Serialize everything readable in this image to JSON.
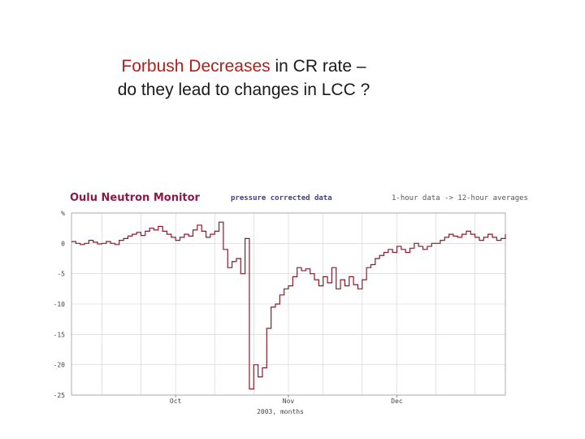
{
  "slide": {
    "title_highlight": "Forbush Decreases",
    "title_rest": " in CR rate –",
    "title_line2": "do they lead to changes in LCC ?"
  },
  "chart_header": {
    "station": "Oulu Neutron Monitor",
    "data_note": "pressure corrected data",
    "averaging": "1-hour data -> 12-hour averages"
  },
  "chart_data": {
    "type": "line",
    "title": "Oulu Neutron Monitor",
    "xlabel": "2003, months",
    "ylabel": "%",
    "ylim": [
      -25,
      5
    ],
    "xlim": [
      0,
      100
    ],
    "y_ticks": [
      {
        "value": 5,
        "label": "%"
      },
      {
        "value": 0,
        "label": "0"
      },
      {
        "value": -5,
        "label": "-5"
      },
      {
        "value": -10,
        "label": "-10"
      },
      {
        "value": -15,
        "label": "-15"
      },
      {
        "value": -20,
        "label": "-20"
      },
      {
        "value": -25,
        "label": "-25"
      }
    ],
    "x_ticks": [
      {
        "value": 24,
        "label": "Oct"
      },
      {
        "value": 50,
        "label": "Nov"
      },
      {
        "value": 75,
        "label": "Dec"
      }
    ],
    "grid": true,
    "series": [
      {
        "color": "#8b1a2a",
        "x": [
          0,
          1,
          2,
          3,
          4,
          5,
          6,
          7,
          8,
          9,
          10,
          11,
          12,
          13,
          14,
          15,
          16,
          17,
          18,
          19,
          20,
          21,
          22,
          23,
          24,
          25,
          26,
          27,
          28,
          29,
          30,
          31,
          32,
          33,
          34,
          35,
          36,
          37,
          38,
          39,
          40,
          41,
          42,
          43,
          44,
          45,
          46,
          47,
          48,
          49,
          50,
          51,
          52,
          53,
          54,
          55,
          56,
          57,
          58,
          59,
          60,
          61,
          62,
          63,
          64,
          65,
          66,
          67,
          68,
          69,
          70,
          71,
          72,
          73,
          74,
          75,
          76,
          77,
          78,
          79,
          80,
          81,
          82,
          83,
          84,
          85,
          86,
          87,
          88,
          89,
          90,
          91,
          92,
          93,
          94,
          95,
          96,
          97,
          98,
          99,
          100
        ],
        "values": [
          0.3,
          0,
          -0.2,
          0,
          0.5,
          0.2,
          -0.1,
          0,
          0.3,
          0,
          -0.2,
          0.5,
          0.8,
          1.2,
          1.5,
          1.8,
          1.3,
          2.0,
          2.5,
          2.2,
          2.8,
          2.0,
          1.5,
          1.0,
          0.5,
          1.0,
          1.5,
          1.2,
          2.2,
          3.0,
          2.0,
          1.0,
          1.5,
          2.0,
          3.5,
          -1.0,
          -4.0,
          -3.0,
          -2.5,
          -5.0,
          0.8,
          -24,
          -20,
          -22,
          -20.5,
          -14,
          -10.5,
          -10,
          -8.5,
          -7.5,
          -7,
          -5.5,
          -4,
          -4.5,
          -4.2,
          -5,
          -6,
          -7,
          -5.5,
          -6.5,
          -4,
          -7.5,
          -6,
          -7,
          -5.5,
          -6.8,
          -7.5,
          -6,
          -4,
          -3.5,
          -2.5,
          -2,
          -1.5,
          -1,
          -1.5,
          -0.5,
          -1.0,
          -1.5,
          -0.8,
          0,
          -0.5,
          -1.0,
          -0.5,
          0,
          0,
          0.5,
          1.0,
          1.5,
          1.2,
          1.0,
          1.5,
          2.0,
          1.5,
          1.0,
          0.5,
          1.0,
          1.5,
          1.0,
          0.5,
          0.8,
          1.5
        ]
      }
    ]
  }
}
